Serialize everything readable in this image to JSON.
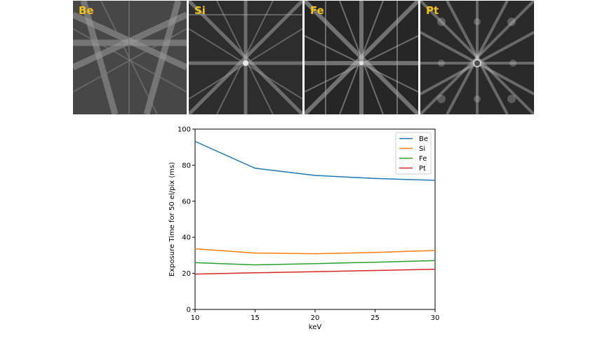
{
  "panels": [
    {
      "label": "Be"
    },
    {
      "label": "Si"
    },
    {
      "label": "Fe"
    },
    {
      "label": "Pt"
    }
  ],
  "chart_data": {
    "type": "line",
    "title": "",
    "xlabel": "keV",
    "ylabel": "Exposure Time for 50 el/pix (ms)",
    "x": [
      10,
      15,
      20,
      25,
      30
    ],
    "xlim": [
      10,
      30
    ],
    "ylim": [
      0,
      100
    ],
    "xticks": [
      10,
      15,
      20,
      25,
      30
    ],
    "yticks": [
      0,
      20,
      40,
      60,
      80,
      100
    ],
    "grid": false,
    "legend_position": "top-right",
    "series": [
      {
        "name": "Be",
        "color": "#1f77b4",
        "values": [
          93.2,
          78.3,
          74.3,
          72.6,
          71.6
        ]
      },
      {
        "name": "Si",
        "color": "#ff7f0e",
        "values": [
          33.6,
          31.3,
          30.9,
          31.6,
          32.7
        ]
      },
      {
        "name": "Fe",
        "color": "#2ca02c",
        "values": [
          25.9,
          24.7,
          25.4,
          26.2,
          27.1
        ]
      },
      {
        "name": "Pt",
        "color": "#d62728",
        "values": [
          19.6,
          20.3,
          20.9,
          21.6,
          22.3
        ]
      }
    ]
  }
}
